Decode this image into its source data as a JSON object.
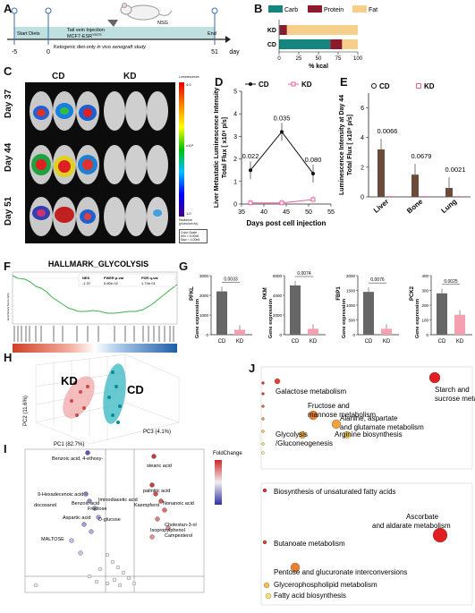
{
  "panels": [
    "A",
    "B",
    "C",
    "D",
    "E",
    "F",
    "G",
    "H",
    "I",
    "J"
  ],
  "panelA": {
    "timeline_ticks": [
      "-5",
      "0",
      "51"
    ],
    "unit": "day",
    "segments": [
      "Start Diets",
      "Tail vein Injection"
    ],
    "cell_line": "MCF7-ESR",
    "cell_superscript": "Y537S",
    "mouse_label": "NSG",
    "end_label": "End",
    "caption_plain": "Ketogenic diet-only",
    "caption_italic": "in vivo xenograft study"
  },
  "panelC": {
    "col_headers": [
      "CD",
      "KD"
    ],
    "row_labels": [
      "Day 37",
      "Day 44",
      "Day 51"
    ],
    "scale_title": "Luminescence",
    "scale_top": "4.0",
    "scale_bottom": "1.0",
    "scale_exp": "x10⁸",
    "scale_units": "Radiance (p/sec/cm²/sr)",
    "color_scale_note": [
      "Color Scale",
      "Min = 5.00e6",
      "Max = 4.00e8"
    ]
  },
  "panelF": {
    "title": "HALLMARK_GLYCOLYSIS",
    "ylabel": "Enrichment Score (ES)",
    "stats_headers": [
      "NES",
      "FWER p-val",
      "FDR q-val"
    ],
    "stats_values": [
      "-1.37",
      "5.80e-02",
      "1.74e-01"
    ]
  },
  "panelH": {
    "group1": "KD",
    "group2": "CD",
    "pc1": "PC1 (82.7%)",
    "pc2": "PC2 (11.6%)",
    "pc3": "PC3 (4.1%)"
  },
  "panelI": {
    "legend_title": "FoldChange",
    "labels": [
      "Benzoic acid, 4-ethoxy-",
      "stearic acid",
      "9-Hexadecenoic acid",
      "palmitic acid",
      "docosanol",
      "Benzoic acid",
      "Fructose",
      "Iminodiacetic acid",
      "Kaempferol",
      "Nonanoic acid",
      "Aspartic acid",
      "D-glucose",
      "Cholestan-3-ol",
      "Isopropylphenol",
      "Campesterol",
      "MALTOSE"
    ]
  },
  "panelJ": {
    "top_labels": [
      "Starch and",
      "sucrose metabolism",
      "Galactose metabolism",
      "Fructose and",
      "mannose metabolism",
      "Alanine, aspartate",
      "and glutamate metabolism",
      "Glycolysis",
      "/Gluconeogenesis",
      "Arginine biosynthesis"
    ],
    "bottom_labels": [
      "Biosynthesis of unsaturated fatty acids",
      "Ascorbate",
      "and aldarate metabolism",
      "Butanoate metabolism",
      "Pentose and glucuronate interconversions",
      "Glycerophospholipid metabolism",
      "Fatty acid biosynthesis"
    ]
  },
  "chart_data": [
    {
      "panel": "B",
      "type": "bar",
      "orientation": "horizontal",
      "stacked": true,
      "categories": [
        "KD",
        "CD"
      ],
      "series": [
        {
          "name": "Carb",
          "color": "#15857f",
          "values": [
            1,
            65
          ]
        },
        {
          "name": "Protein",
          "color": "#8b1a2b",
          "values": [
            9,
            15
          ]
        },
        {
          "name": "Fat",
          "color": "#f6cf8b",
          "values": [
            90,
            20
          ]
        }
      ],
      "xlabel": "% kcal",
      "xticks": [
        "0",
        "25",
        "50",
        "75",
        "100"
      ],
      "xlim": [
        0,
        100
      ],
      "legend": "top"
    },
    {
      "panel": "D",
      "type": "line",
      "title": "",
      "x": [
        37,
        44,
        51
      ],
      "series": [
        {
          "name": "CD",
          "color": "#111111",
          "values": [
            1.5,
            3.2,
            1.35
          ]
        },
        {
          "name": "KD",
          "color": "#e8629a",
          "values": [
            0.05,
            0.05,
            0.2
          ]
        }
      ],
      "annotations": [
        "0.022",
        "0.035",
        "0.080"
      ],
      "ylabel_lines": [
        "Liver Metastatic Luminescence Intensity",
        "Total Flux [ x10⁹ p/s]"
      ],
      "xlabel": "Days post cell injection",
      "xticks": [
        "35",
        "40",
        "45",
        "50",
        "55"
      ],
      "yticks": [
        "0",
        "1",
        "2",
        "3",
        "4",
        "5"
      ],
      "ylim": [
        0,
        5
      ],
      "xlim": [
        35,
        55
      ]
    },
    {
      "panel": "E",
      "type": "bar",
      "categories": [
        "Liver",
        "Bone",
        "Lung"
      ],
      "series": [
        {
          "name": "CD",
          "color": "#111111",
          "values": [
            3.2,
            1.5,
            0.6
          ]
        },
        {
          "name": "KD",
          "color": "#e8629a",
          "values": [
            0.05,
            0.05,
            0.05
          ]
        }
      ],
      "pvalues": [
        "0.0066",
        "0.0679",
        "0.0021"
      ],
      "ylabel_lines": [
        "Luminescence Intensity at Day 44",
        "Total Flux [ x10⁹ p/s]"
      ],
      "yticks": [
        "0",
        "2",
        "4",
        "6"
      ],
      "ylim": [
        0,
        7
      ]
    },
    {
      "panel": "G",
      "type": "bar",
      "subplots": [
        {
          "gene": "PFKL",
          "categories": [
            "CD",
            "KD"
          ],
          "values": [
            2200,
            250
          ],
          "pvalue": "0.0033",
          "yticks": [
            "0",
            "1000",
            "2000",
            "3000"
          ],
          "ylim": [
            0,
            3000
          ]
        },
        {
          "gene": "PKM",
          "categories": [
            "CD",
            "KD"
          ],
          "values": [
            5000,
            600
          ],
          "pvalue": "0.0074",
          "yticks": [
            "0",
            "2000",
            "4000",
            "6000"
          ],
          "ylim": [
            0,
            6000
          ]
        },
        {
          "gene": "FBP1",
          "categories": [
            "CD",
            "KD"
          ],
          "values": [
            1450,
            200
          ],
          "pvalue": "0.0076",
          "yticks": [
            "0",
            "500",
            "1000",
            "1500",
            "2000"
          ],
          "ylim": [
            0,
            2000
          ]
        },
        {
          "gene": "PCK2",
          "categories": [
            "CD",
            "KD"
          ],
          "values": [
            280,
            135
          ],
          "pvalue": "0.0025",
          "yticks": [
            "0",
            "100",
            "200",
            "300",
            "400"
          ],
          "ylim": [
            0,
            400
          ]
        }
      ],
      "ylabel": "Gene expression"
    }
  ]
}
